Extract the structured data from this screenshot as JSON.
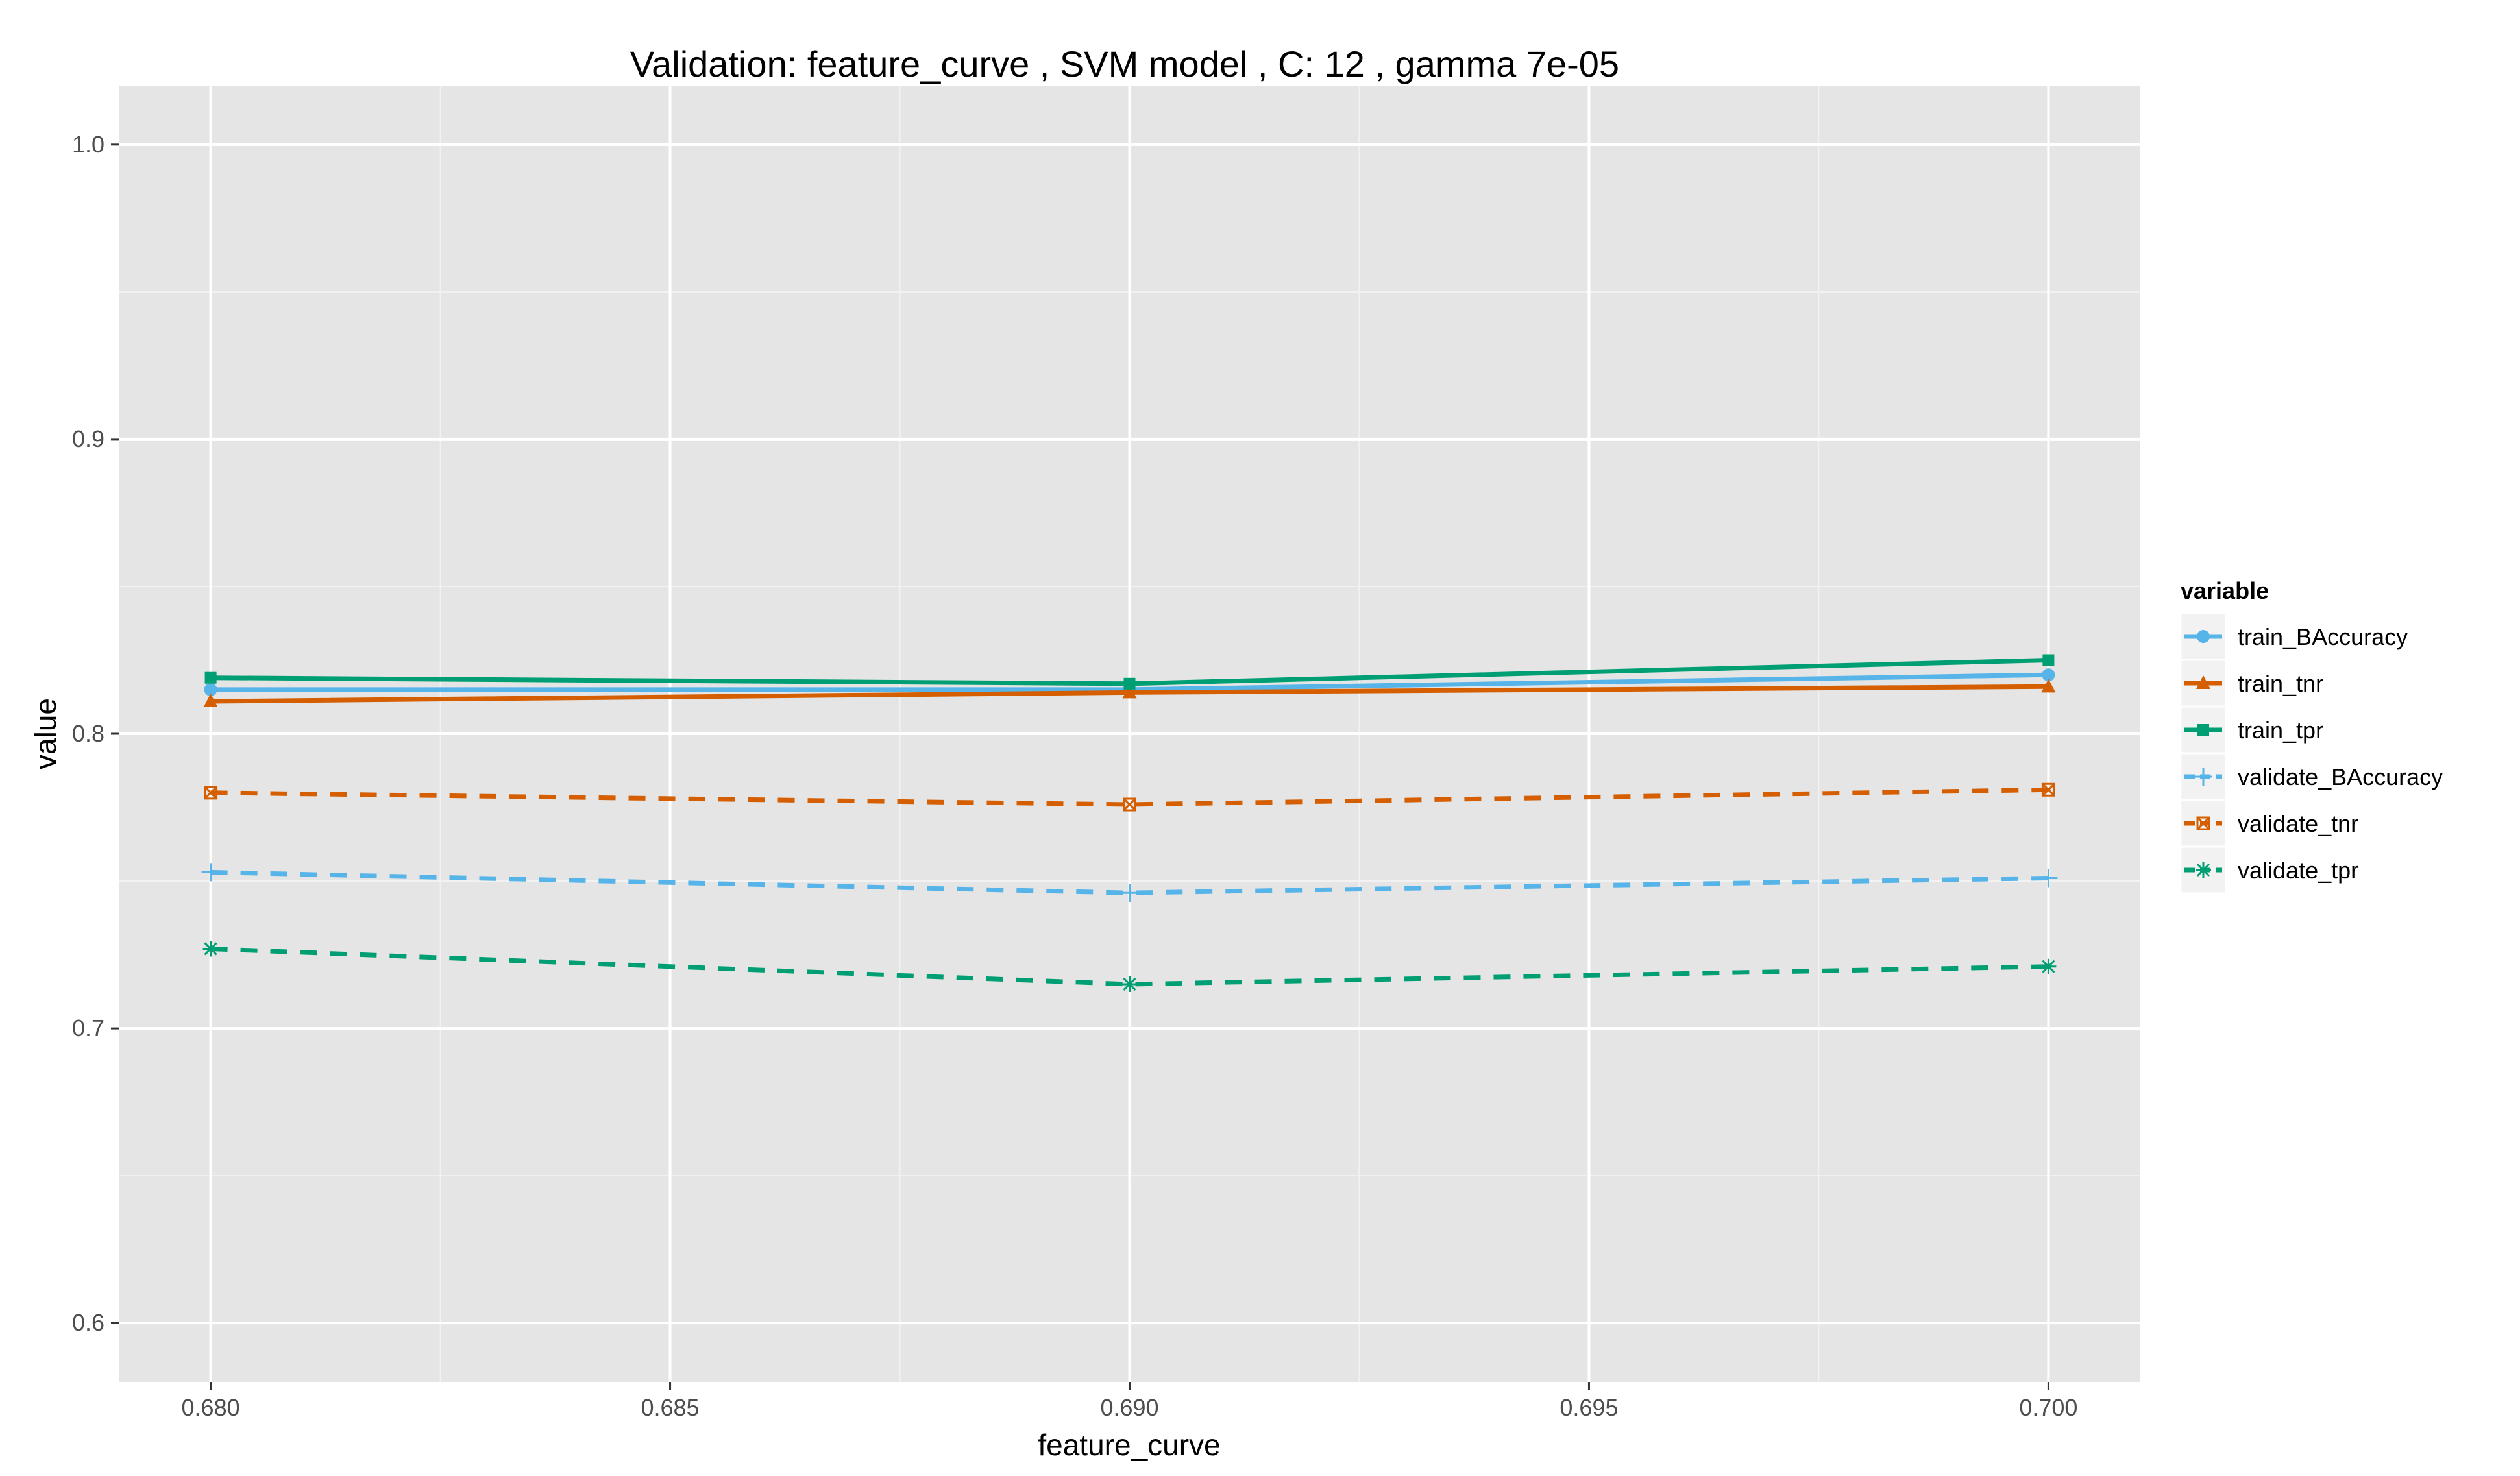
{
  "chart_data": {
    "type": "line",
    "title": "Validation:  feature_curve ,  SVM model , C:  12 , gamma 7e-05",
    "xlabel": "feature_curve",
    "ylabel": "value",
    "xlim": [
      0.679,
      0.701
    ],
    "ylim": [
      0.58,
      1.02
    ],
    "x": [
      0.68,
      0.69,
      0.7
    ],
    "x_ticks": [
      0.68,
      0.685,
      0.69,
      0.695,
      0.7
    ],
    "x_tick_labels": [
      "0.680",
      "0.685",
      "0.690",
      "0.695",
      "0.700"
    ],
    "y_ticks": [
      0.6,
      0.7,
      0.8,
      0.9,
      1.0
    ],
    "y_tick_labels": [
      "0.6",
      "0.7",
      "0.8",
      "0.9",
      "1.0"
    ],
    "grid": true,
    "legend": {
      "title": "variable",
      "position": "right"
    },
    "series": [
      {
        "name": "train_BAccuracy",
        "values": [
          0.815,
          0.815,
          0.82
        ],
        "color": "#56B4E9",
        "dash": "solid",
        "marker": "circle"
      },
      {
        "name": "train_tnr",
        "values": [
          0.811,
          0.814,
          0.816
        ],
        "color": "#D55E00",
        "dash": "solid",
        "marker": "triangle"
      },
      {
        "name": "train_tpr",
        "values": [
          0.819,
          0.817,
          0.825
        ],
        "color": "#009E73",
        "dash": "solid",
        "marker": "square"
      },
      {
        "name": "validate_BAccuracy",
        "values": [
          0.753,
          0.746,
          0.751
        ],
        "color": "#56B4E9",
        "dash": "dashed",
        "marker": "plus"
      },
      {
        "name": "validate_tnr",
        "values": [
          0.78,
          0.776,
          0.781
        ],
        "color": "#D55E00",
        "dash": "dashed",
        "marker": "boxcross"
      },
      {
        "name": "validate_tpr",
        "values": [
          0.727,
          0.715,
          0.721
        ],
        "color": "#009E73",
        "dash": "dashed",
        "marker": "asterisk"
      }
    ]
  }
}
